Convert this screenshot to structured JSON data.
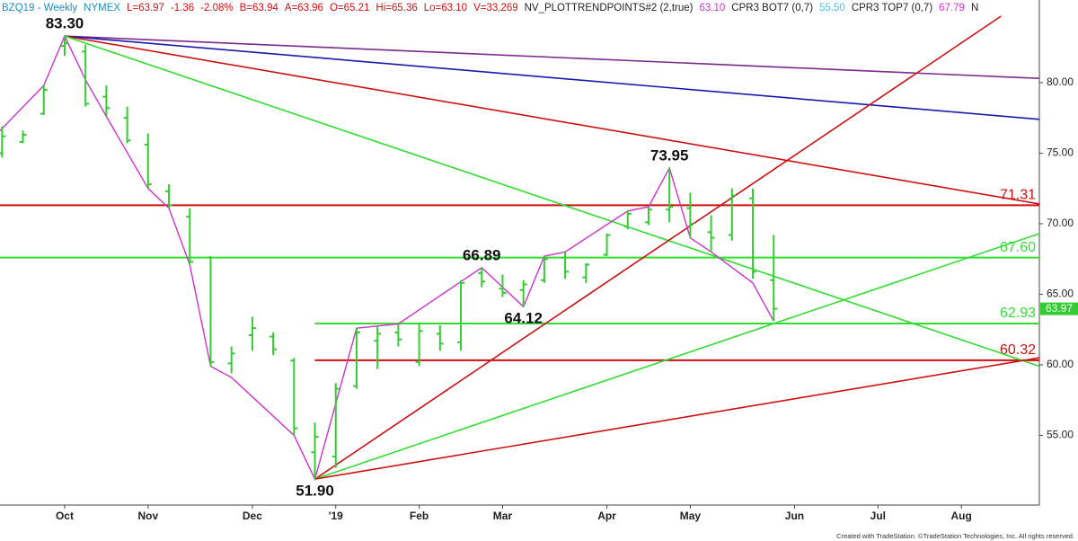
{
  "chart_data": {
    "type": "ohlc",
    "header": [
      {
        "text": "BZQ19 - Weekly",
        "color": "#1a8fbf"
      },
      {
        "text": "NYMEX",
        "color": "#1a8fbf"
      },
      {
        "text": "L=63.97",
        "color": "#cc1111"
      },
      {
        "text": "-1.36",
        "color": "#cc1111"
      },
      {
        "text": "-2.08%",
        "color": "#cc1111"
      },
      {
        "text": "B=63.94",
        "color": "#cc1111"
      },
      {
        "text": "A=63.96",
        "color": "#cc1111"
      },
      {
        "text": "O=65.21",
        "color": "#cc1111"
      },
      {
        "text": "Hi=65.36",
        "color": "#cc1111"
      },
      {
        "text": "Lo=63.10",
        "color": "#cc1111"
      },
      {
        "text": "V=33,269",
        "color": "#cc1111"
      },
      {
        "text": "NV_PLOTTRENDPOINTS#2 (2,true)",
        "color": "#222222"
      },
      {
        "text": "63.10",
        "color": "#cc33cc"
      },
      {
        "text": "CPR3 BOT7 (0,7)",
        "color": "#222222"
      },
      {
        "text": "55.50",
        "color": "#33ccee"
      },
      {
        "text": "CPR3 TOP7 (0,7)",
        "color": "#222222"
      },
      {
        "text": "67.79",
        "color": "#cc33cc"
      },
      {
        "text": "N",
        "color": "#222222"
      }
    ],
    "footer": "Created with TradeStation. ©TradeStation Technologies, Inc. All rights reserved.",
    "color": "#33cc33",
    "xlim": [
      -0.1,
      49.74
    ],
    "ylim": [
      50.06,
      84.71
    ],
    "xticks": [
      {
        "value": 3,
        "label": "Oct"
      },
      {
        "value": 7,
        "label": "Nov"
      },
      {
        "value": 12,
        "label": "Dec"
      },
      {
        "value": 16,
        "label": "'19"
      },
      {
        "value": 20,
        "label": "Feb"
      },
      {
        "value": 24,
        "label": "Mar"
      },
      {
        "value": 29,
        "label": "Apr"
      },
      {
        "value": 33,
        "label": "May"
      },
      {
        "value": 38,
        "label": "Jun"
      },
      {
        "value": 42,
        "label": "Jul"
      },
      {
        "value": 46,
        "label": "Aug"
      }
    ],
    "yticks": [
      {
        "value": 55,
        "label": "55.00"
      },
      {
        "value": 60,
        "label": "60.00"
      },
      {
        "value": 65,
        "label": "65.00"
      },
      {
        "value": 70,
        "label": "70.00"
      },
      {
        "value": 75,
        "label": "75.00"
      },
      {
        "value": 80,
        "label": "80.00"
      }
    ],
    "x": [
      0,
      1,
      2,
      3,
      4,
      5,
      6,
      7,
      8,
      9,
      10,
      11,
      12,
      13,
      14,
      15,
      16,
      17,
      18,
      19,
      20,
      21,
      22,
      23,
      24,
      25,
      26,
      27,
      28,
      29,
      30,
      31,
      32,
      33,
      34,
      35,
      36,
      37
    ],
    "open": [
      75.0,
      75.8,
      77.8,
      82.6,
      82.2,
      79.0,
      77.5,
      75.6,
      72.3,
      70.5,
      67.6,
      60.1,
      62.1,
      62.0,
      60.3,
      53.8,
      53.5,
      58.5,
      61.7,
      62.3,
      60.2,
      62.2,
      61.6,
      66.5,
      65.4,
      65.3,
      66.0,
      67.6,
      66.2,
      67.8,
      69.8,
      70.1,
      71.0,
      71.1,
      69.4,
      69.2,
      71.8,
      66.0
    ],
    "high": [
      76.9,
      76.6,
      79.8,
      83.3,
      82.7,
      79.8,
      78.3,
      76.4,
      72.8,
      71.1,
      67.7,
      61.3,
      63.4,
      62.3,
      60.5,
      55.9,
      58.7,
      62.6,
      62.7,
      62.9,
      62.9,
      62.8,
      66.0,
      66.9,
      66.4,
      66.0,
      67.7,
      68.0,
      67.2,
      69.3,
      70.9,
      71.2,
      73.95,
      72.2,
      70.6,
      72.5,
      72.5,
      69.2
    ],
    "low": [
      74.7,
      75.7,
      77.7,
      81.9,
      78.3,
      77.6,
      75.7,
      72.5,
      71.1,
      67.1,
      59.9,
      59.4,
      61.0,
      60.7,
      55.0,
      51.9,
      52.7,
      58.3,
      59.7,
      61.3,
      59.9,
      61.0,
      61.0,
      65.5,
      64.8,
      64.1,
      65.8,
      66.1,
      65.8,
      67.7,
      69.6,
      69.9,
      70.1,
      69.0,
      68.0,
      68.8,
      66.1,
      63.1
    ],
    "close": [
      76.2,
      76.3,
      79.5,
      82.8,
      78.5,
      78.2,
      75.9,
      72.8,
      71.3,
      67.3,
      60.2,
      60.8,
      62.6,
      61.1,
      55.5,
      54.9,
      58.3,
      62.3,
      62.2,
      61.8,
      62.4,
      61.5,
      65.8,
      65.9,
      65.1,
      65.7,
      67.5,
      66.6,
      67.1,
      69.2,
      70.7,
      71.0,
      71.2,
      70.0,
      69.0,
      72.0,
      66.6,
      63.97
    ],
    "last_label": "63.97",
    "swing": {
      "color": "#cc33cc",
      "x": [
        -0.1,
        2,
        3,
        4,
        5,
        7,
        8,
        9,
        10,
        11,
        14,
        15,
        17,
        19,
        23,
        25,
        26,
        27,
        30,
        31,
        32,
        33,
        34,
        36,
        37
      ],
      "values": [
        76.6,
        79.8,
        83.3,
        80.2,
        77.6,
        72.5,
        71.1,
        67.1,
        59.9,
        59.1,
        55.0,
        51.9,
        62.6,
        62.9,
        66.89,
        64.12,
        67.7,
        68.0,
        70.9,
        71.2,
        73.95,
        69.0,
        68.0,
        65.8,
        63.1
      ]
    },
    "trendlines": [
      {
        "color": "#7a2a8a",
        "x": [
          3,
          49.74
        ],
        "values": [
          83.3,
          80.3
        ]
      },
      {
        "color": "#1a1aaa",
        "x": [
          3,
          49.74
        ],
        "values": [
          83.3,
          77.4
        ]
      },
      {
        "color": "#cc1111",
        "x": [
          3,
          49.74
        ],
        "values": [
          83.3,
          71.4
        ]
      },
      {
        "color": "#33dd33",
        "x": [
          3,
          49.74
        ],
        "values": [
          83.3,
          59.9
        ]
      },
      {
        "color": "#cc1111",
        "x": [
          15,
          47.9
        ],
        "values": [
          51.9,
          84.71
        ]
      },
      {
        "color": "#33dd33",
        "x": [
          15,
          49.74
        ],
        "values": [
          51.9,
          69.3
        ]
      },
      {
        "color": "#cc1111",
        "x": [
          15,
          49.74
        ],
        "values": [
          51.9,
          60.5
        ]
      }
    ],
    "levels": [
      {
        "value": 71.31,
        "label": "71.31",
        "color": "#cc1111",
        "x_start": -0.1
      },
      {
        "value": 67.6,
        "label": "67.60",
        "color": "#33dd33",
        "x_start": -0.1
      },
      {
        "value": 62.93,
        "label": "62.93",
        "color": "#33dd33",
        "x_start": 15
      },
      {
        "value": 60.32,
        "label": "60.32",
        "color": "#cc1111",
        "x_start": 15
      }
    ],
    "annotations": [
      {
        "label": "83.30",
        "x": 3,
        "value": 83.3,
        "side": "above"
      },
      {
        "label": "51.90",
        "x": 15,
        "value": 51.9,
        "side": "below"
      },
      {
        "label": "66.89",
        "x": 23,
        "value": 66.89,
        "side": "above"
      },
      {
        "label": "64.12",
        "x": 25,
        "value": 64.12,
        "side": "below"
      },
      {
        "label": "73.95",
        "x": 32,
        "value": 73.95,
        "side": "above"
      }
    ]
  }
}
